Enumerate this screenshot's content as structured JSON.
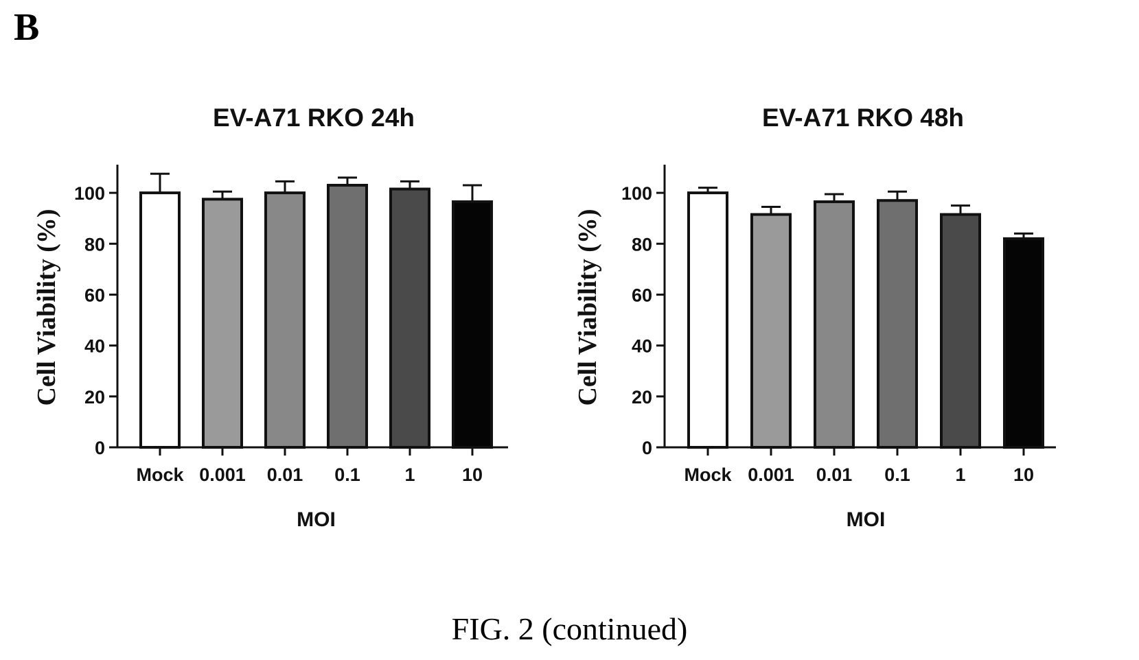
{
  "panel_label": "B",
  "caption": "FIG. 2 (continued)",
  "chart_data": [
    {
      "type": "bar",
      "title": "EV-A71 RKO 24h",
      "xlabel": "MOI",
      "ylabel": "Cell Viability (%)",
      "categories": [
        "Mock",
        "0.001",
        "0.01",
        "0.1",
        "1",
        "10"
      ],
      "values": [
        100,
        97.5,
        100,
        103,
        101.5,
        96.5
      ],
      "errors": [
        7.5,
        3,
        4.5,
        3,
        3,
        6.5
      ],
      "bar_colors": [
        "#ffffff",
        "#9a9a9a",
        "#888888",
        "#6f6f6f",
        "#4a4a4a",
        "#050505"
      ],
      "ylim": [
        0,
        110
      ],
      "yticks": [
        0,
        20,
        40,
        60,
        80,
        100
      ],
      "grid": false,
      "legend": false
    },
    {
      "type": "bar",
      "title": "EV-A71 RKO 48h",
      "xlabel": "MOI",
      "ylabel": "Cell Viability (%)",
      "categories": [
        "Mock",
        "0.001",
        "0.01",
        "0.1",
        "1",
        "10"
      ],
      "values": [
        100,
        91.5,
        96.5,
        97,
        91.5,
        82
      ],
      "errors": [
        2,
        3,
        3,
        3.5,
        3.5,
        2
      ],
      "bar_colors": [
        "#ffffff",
        "#9a9a9a",
        "#888888",
        "#6f6f6f",
        "#4a4a4a",
        "#050505"
      ],
      "ylim": [
        0,
        110
      ],
      "yticks": [
        0,
        20,
        40,
        60,
        80,
        100
      ],
      "grid": false,
      "legend": false
    }
  ]
}
